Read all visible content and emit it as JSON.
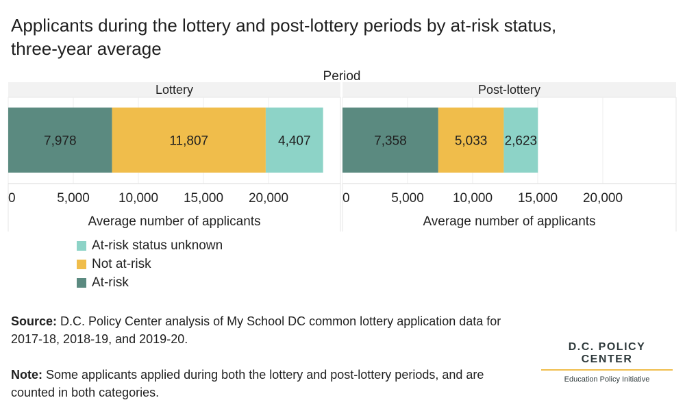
{
  "title_line1": "Applicants during the lottery and post-lottery periods by at-risk status,",
  "title_line2": "three-year average",
  "chart_data": {
    "type": "bar",
    "orientation": "horizontal",
    "stacked": true,
    "facet_label": "Period",
    "panels": [
      {
        "name": "Lottery",
        "segments": [
          {
            "series": "At-risk",
            "value": 7978,
            "label": "7,978"
          },
          {
            "series": "Not at-risk",
            "value": 11807,
            "label": "11,807"
          },
          {
            "series": "At-risk status unknown",
            "value": 4407,
            "label": "4,407"
          }
        ]
      },
      {
        "name": "Post-lottery",
        "segments": [
          {
            "series": "At-risk",
            "value": 7358,
            "label": "7,358"
          },
          {
            "series": "Not at-risk",
            "value": 5033,
            "label": "5,033"
          },
          {
            "series": "At-risk status unknown",
            "value": 2623,
            "label": "2,623"
          }
        ]
      }
    ],
    "xlabel": "Average number of applicants",
    "xlim": [
      0,
      25000
    ],
    "xticks": [
      0,
      5000,
      10000,
      15000,
      20000
    ],
    "xtick_labels": [
      "0",
      "5,000",
      "10,000",
      "15,000",
      "20,000"
    ],
    "grid": true,
    "legend_position": "bottom-left",
    "legend": [
      {
        "name": "At-risk status unknown",
        "color": "#8dd3c7"
      },
      {
        "name": "Not at-risk",
        "color": "#f0bd4b"
      },
      {
        "name": "At-risk",
        "color": "#5b8a80"
      }
    ]
  },
  "source_label": "Source:",
  "source_text": " D.C. Policy Center analysis of My School DC common lottery application data for 2017-18, 2018-19, and 2019-20.",
  "note_label": "Note:",
  "note_text": " Some applicants applied during both the lottery and post-lottery periods, and are counted in both categories.",
  "brand": {
    "name": "D.C. POLICY CENTER",
    "subtitle": "Education Policy Initiative"
  }
}
